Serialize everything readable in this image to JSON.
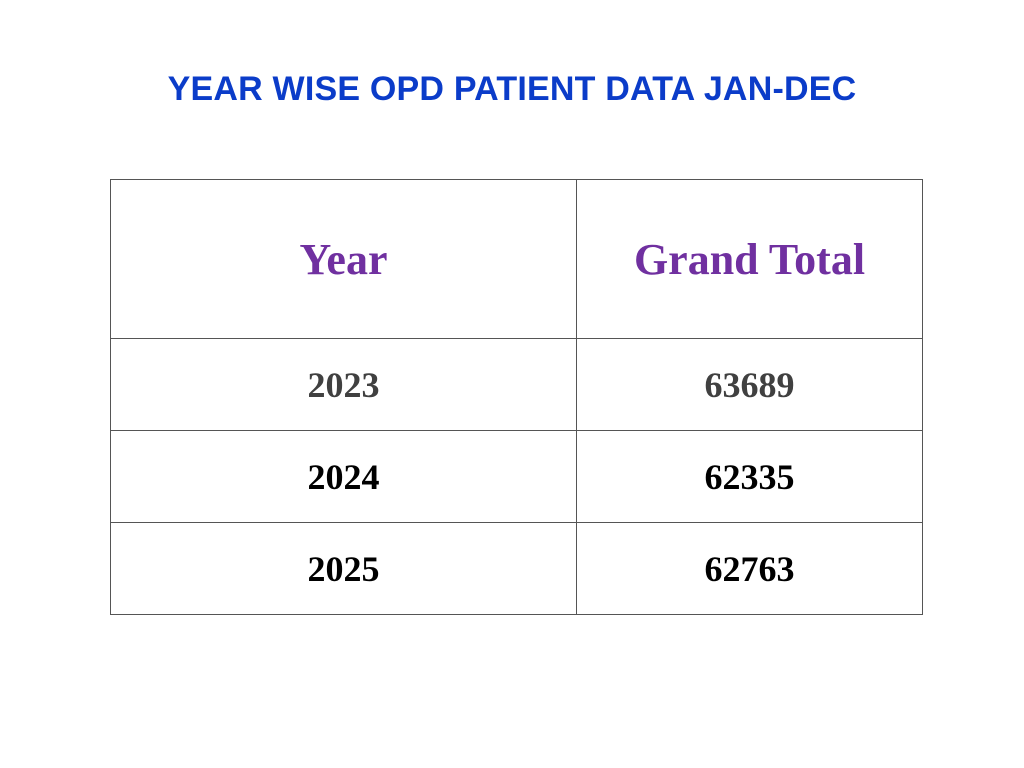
{
  "title": "YEAR WISE OPD PATIENT DATA JAN-DEC",
  "colors": {
    "title": "#0b3cc9",
    "header": "#7030a0",
    "first_row": "#404040",
    "rows": "#000000"
  },
  "table": {
    "headers": [
      "Year",
      "Grand Total"
    ],
    "rows": [
      [
        "2023",
        "63689"
      ],
      [
        "2024",
        "62335"
      ],
      [
        "2025",
        "62763"
      ]
    ]
  }
}
